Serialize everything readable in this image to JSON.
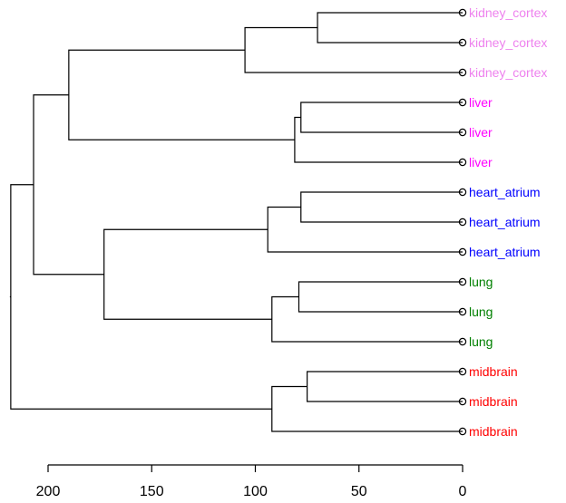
{
  "chart_data": {
    "type": "dendrogram",
    "orientation": "horizontal",
    "title": "",
    "xlabel": "",
    "ylabel": "",
    "xlim": [
      0,
      200
    ],
    "reversed_x": true,
    "x_ticks": [
      200,
      150,
      100,
      50,
      0
    ],
    "x_tick_labels": [
      "200",
      "150",
      "100",
      "50",
      "0"
    ],
    "leaves": [
      {
        "label": "kidney_cortex",
        "color": "#ee82ee"
      },
      {
        "label": "kidney_cortex",
        "color": "#ee82ee"
      },
      {
        "label": "kidney_cortex",
        "color": "#ee82ee"
      },
      {
        "label": "liver",
        "color": "#ff00ff"
      },
      {
        "label": "liver",
        "color": "#ff00ff"
      },
      {
        "label": "liver",
        "color": "#ff00ff"
      },
      {
        "label": "heart_atrium",
        "color": "#0000ff"
      },
      {
        "label": "heart_atrium",
        "color": "#0000ff"
      },
      {
        "label": "heart_atrium",
        "color": "#0000ff"
      },
      {
        "label": "lung",
        "color": "#008000"
      },
      {
        "label": "lung",
        "color": "#008000"
      },
      {
        "label": "lung",
        "color": "#008000"
      },
      {
        "label": "midbrain",
        "color": "#ff0000"
      },
      {
        "label": "midbrain",
        "color": "#ff0000"
      },
      {
        "label": "midbrain",
        "color": "#ff0000"
      }
    ],
    "merges": [
      {
        "children": [
          0,
          1
        ],
        "height": 70
      },
      {
        "children": [
          3,
          4
        ],
        "height": 78
      },
      {
        "children": [
          6,
          7
        ],
        "height": 78
      },
      {
        "children": [
          9,
          10
        ],
        "height": 79
      },
      {
        "children": [
          12,
          13
        ],
        "height": 75
      },
      {
        "children": [
          15,
          2
        ],
        "height": 105
      },
      {
        "children": [
          16,
          5
        ],
        "height": 81
      },
      {
        "children": [
          17,
          8
        ],
        "height": 94
      },
      {
        "children": [
          18,
          11
        ],
        "height": 92
      },
      {
        "children": [
          19,
          14
        ],
        "height": 92
      },
      {
        "children": [
          20,
          21
        ],
        "height": 190
      },
      {
        "children": [
          22,
          23
        ],
        "height": 173
      },
      {
        "children": [
          25,
          26
        ],
        "height": 207
      },
      {
        "children": [
          27,
          24
        ],
        "height": 218
      }
    ],
    "merge_note_index_base": 15,
    "grid": false,
    "legend": "none"
  }
}
